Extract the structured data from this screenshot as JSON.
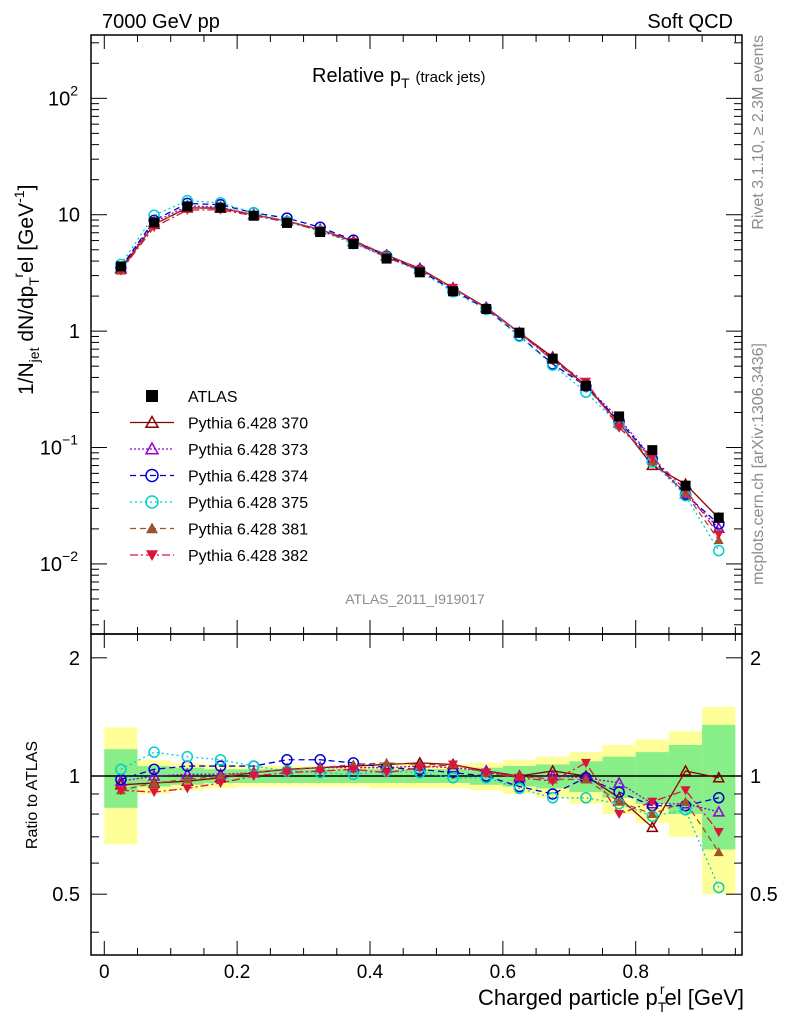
{
  "header": {
    "left": "7000 GeV pp",
    "right": "Soft QCD",
    "plot_title": "Relative p",
    "plot_title_sub": "T",
    "plot_title_note": "(track jets)",
    "analysis_id": "ATLAS_2011_I919017",
    "side_top": "Rivet 3.1.10, ≥ 2.3M events",
    "side_bottom": "mcplots.cern.ch [arXiv:1306.3436]"
  },
  "axes": {
    "xlabel": "Charged particle p",
    "xlabel_sub": "T",
    "xlabel_sup": "r",
    "xlabel_tail": "el [GeV]",
    "ylabel_top": "1/N",
    "ylabel_top_sub": "jet",
    "ylabel_top_mid": " dN/dp",
    "ylabel_top_sub2": "T",
    "ylabel_top_sup2": "r",
    "ylabel_top_tail": "el [GeV",
    "ylabel_top_sup3": "-1",
    "ylabel_top_close": "]",
    "ylabel_ratio": "Ratio to ATLAS",
    "xticks": [
      "0",
      "0.2",
      "0.4",
      "0.6",
      "0.8"
    ],
    "xtick_values": [
      0,
      0.2,
      0.4,
      0.6,
      0.8
    ],
    "yticks_top": [
      {
        "base": "10",
        "exp": "2",
        "value": 100
      },
      {
        "base": "10",
        "exp": "",
        "value": 10
      },
      {
        "base": "1",
        "exp": "",
        "value": 1
      },
      {
        "base": "10",
        "exp": "−1",
        "value": 0.1
      },
      {
        "base": "10",
        "exp": "−2",
        "value": 0.01
      }
    ],
    "yticks_ratio": [
      "0.5",
      "1",
      "2"
    ],
    "ytick_ratio_values": [
      0.5,
      1,
      2
    ]
  },
  "colors": {
    "atlas": "#000000",
    "p370": "#8b0000",
    "p373": "#9400d3",
    "p374": "#0000cd",
    "p375": "#00ced1",
    "p381": "#a0522d",
    "p382": "#dc143c",
    "band_yellow": "#ffff99",
    "band_green": "#88ee88"
  },
  "chart_data": {
    "type": "scatter",
    "xlim": [
      -0.02,
      0.96
    ],
    "ylim_top": [
      0.0025,
      350
    ],
    "ylim_ratio": [
      0.35,
      2.3
    ],
    "y_scale_top": "log",
    "y_scale_ratio": "log",
    "legend_position": "middle-left",
    "x": [
      0.025,
      0.075,
      0.125,
      0.175,
      0.225,
      0.275,
      0.325,
      0.375,
      0.425,
      0.475,
      0.525,
      0.575,
      0.625,
      0.675,
      0.725,
      0.775,
      0.825,
      0.875,
      0.925
    ],
    "bin_edges": [
      0.0,
      0.05,
      0.1,
      0.15,
      0.2,
      0.25,
      0.3,
      0.35,
      0.4,
      0.45,
      0.5,
      0.55,
      0.6,
      0.65,
      0.7,
      0.75,
      0.8,
      0.85,
      0.9,
      0.95
    ],
    "data": {
      "name": "ATLAS",
      "values": [
        3.6,
        8.6,
        11.8,
        11.5,
        9.8,
        8.5,
        7.1,
        5.6,
        4.2,
        3.2,
        2.2,
        1.55,
        0.97,
        0.58,
        0.34,
        0.185,
        0.095,
        0.047,
        0.025
      ],
      "err_yellow": [
        0.33,
        0.1,
        0.08,
        0.07,
        0.06,
        0.06,
        0.06,
        0.06,
        0.07,
        0.07,
        0.07,
        0.08,
        0.1,
        0.12,
        0.15,
        0.2,
        0.24,
        0.3,
        0.5
      ],
      "err_green": [
        0.17,
        0.06,
        0.05,
        0.04,
        0.04,
        0.04,
        0.04,
        0.04,
        0.04,
        0.04,
        0.04,
        0.05,
        0.06,
        0.07,
        0.09,
        0.12,
        0.15,
        0.2,
        0.35
      ]
    },
    "series": [
      {
        "name": "Pythia 6.428 370",
        "color_key": "p370",
        "marker": "triangle-open",
        "dash": "",
        "ratio": [
          0.95,
          0.96,
          0.97,
          0.99,
          1.02,
          1.04,
          1.05,
          1.06,
          1.07,
          1.08,
          1.07,
          1.03,
          1.0,
          1.03,
          1.0,
          0.88,
          0.74,
          1.03,
          0.99
        ]
      },
      {
        "name": "Pythia 6.428 373",
        "color_key": "p373",
        "marker": "triangle-open",
        "dash": "2,2",
        "ratio": [
          0.97,
          1.0,
          1.01,
          1.01,
          1.02,
          1.04,
          1.05,
          1.05,
          1.05,
          1.06,
          1.05,
          1.03,
          0.99,
          1.0,
          0.99,
          0.96,
          0.85,
          0.85,
          0.81
        ]
      },
      {
        "name": "Pythia 6.428 374",
        "color_key": "p374",
        "marker": "circle-open",
        "dash": "6,4",
        "ratio": [
          0.98,
          1.04,
          1.06,
          1.06,
          1.06,
          1.1,
          1.1,
          1.08,
          1.05,
          1.04,
          1.02,
          1.0,
          0.94,
          0.9,
          0.99,
          0.91,
          0.84,
          0.84,
          0.88
        ]
      },
      {
        "name": "Pythia 6.428 375",
        "color_key": "p375",
        "marker": "circle-open",
        "dash": "2,3",
        "ratio": [
          1.04,
          1.15,
          1.12,
          1.1,
          1.06,
          1.03,
          1.02,
          1.01,
          1.03,
          1.02,
          0.99,
          0.99,
          0.93,
          0.88,
          0.88,
          0.85,
          0.79,
          0.82,
          0.52
        ]
      },
      {
        "name": "Pythia 6.428 381",
        "color_key": "p381",
        "marker": "triangle-filled",
        "dash": "6,4",
        "ratio": [
          0.92,
          0.96,
          0.98,
          1.0,
          1.02,
          1.04,
          1.05,
          1.07,
          1.08,
          1.07,
          1.07,
          1.02,
          1.0,
          0.98,
          0.98,
          0.86,
          0.8,
          0.86,
          0.64
        ]
      },
      {
        "name": "Pythia 6.428 382",
        "color_key": "p382",
        "marker": "triangle-down-filled",
        "dash": "8,3,2,3",
        "ratio": [
          0.92,
          0.91,
          0.93,
          0.96,
          1.0,
          1.02,
          1.03,
          1.04,
          1.02,
          1.05,
          1.07,
          1.02,
          0.99,
          0.97,
          1.08,
          0.8,
          0.86,
          0.92,
          0.72
        ]
      }
    ]
  }
}
